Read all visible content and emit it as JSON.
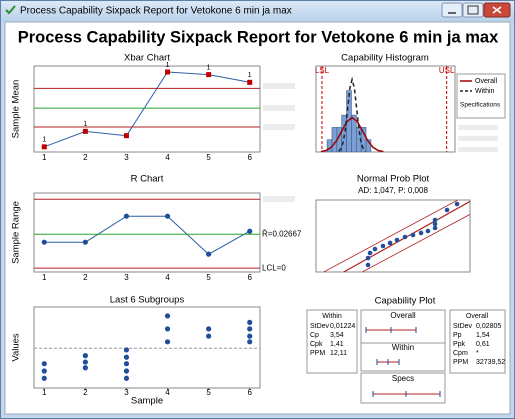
{
  "window": {
    "title": "Process Capability Sixpack Report for Vetokone 6 min ja max"
  },
  "title": "Process Capability Sixpack Report for Vetokone 6 min ja max",
  "chart_data": [
    {
      "type": "line",
      "title": "Xbar Chart",
      "y_label": "Sample Mean",
      "categories": [
        "1",
        "2",
        "3",
        "4",
        "5",
        "6"
      ],
      "values": [
        0.6,
        2.4,
        1.9,
        9.3,
        9.0,
        8.1
      ],
      "point_labels": [
        "1",
        "1",
        null,
        "1",
        "1",
        "1"
      ],
      "ucl": 7.4,
      "center": 5.1,
      "lcl": 2.9,
      "ylim": [
        0,
        10
      ],
      "color": "#2b5fa6",
      "marker": "square",
      "marker_color": "#c00000",
      "limit_color": "#b22222",
      "center_color": "#2ca02c"
    },
    {
      "type": "line",
      "title": "R Chart",
      "y_label": "Sample Range",
      "categories": [
        "1",
        "2",
        "3",
        "4",
        "5",
        "6"
      ],
      "values": [
        0.0204,
        0.0204,
        0.0408,
        0.0408,
        0.011,
        0.029
      ],
      "ucl": 0.0541,
      "center": 0.02667,
      "center_label": "R̄=0.02667",
      "lcl": 0,
      "lcl_label": "LCL=0",
      "ylim": [
        -0.003,
        0.059
      ],
      "color": "#2b5fa6",
      "marker": "circle",
      "marker_color": "#1f4e9a",
      "limit_color": "#b22222",
      "center_color": "#2ca02c"
    },
    {
      "type": "scatter",
      "title": "Last 6 Subgroups",
      "x_label": "Sample",
      "y_label": "Values",
      "x": [
        1,
        1,
        1,
        2,
        2,
        2,
        3,
        3,
        3,
        3,
        3,
        4,
        4,
        4,
        5,
        5,
        6,
        6,
        6,
        6
      ],
      "y": [
        3.0,
        2.1,
        1.2,
        4.0,
        3.2,
        2.5,
        4.7,
        3.8,
        3.0,
        2.1,
        1.2,
        8.9,
        7.3,
        5.7,
        7.3,
        6.4,
        8.1,
        7.3,
        6.4,
        5.7
      ],
      "mean_line": 4.9,
      "xlim": [
        0.75,
        6.25
      ],
      "xticks": [
        1,
        2,
        3,
        4,
        5,
        6
      ],
      "ylim": [
        0,
        10
      ],
      "color": "#1f4e9a"
    },
    {
      "type": "histogram",
      "title": "Capability Histogram",
      "bins": [
        0.8,
        1.15,
        1.5,
        1.85,
        2.2,
        2.55,
        2.9,
        3.25,
        3.6,
        3.95
      ],
      "counts": [
        1,
        2,
        2,
        3,
        5,
        3,
        2,
        2,
        1
      ],
      "xlim": [
        0,
        10
      ],
      "ylim": [
        0,
        7
      ],
      "color": "#7b9ed3",
      "lsl": 0.43,
      "usl": 9.4,
      "lsl_label": "LSL",
      "usl_label": "USL",
      "spec_color": "#c00000",
      "spec_legend": "Specifications",
      "series": [
        {
          "name": "Overall",
          "color": "#a00000",
          "dashed": false,
          "x": [
            0.35,
            0.725,
            1.1,
            1.475,
            1.85,
            2.225,
            2.6,
            2.975,
            3.35,
            3.725,
            4.1,
            4.475,
            4.85
          ],
          "values": [
            0.03,
            0.12,
            0.38,
            0.91,
            1.7,
            2.47,
            2.8,
            2.47,
            1.7,
            0.91,
            0.38,
            0.12,
            0.03
          ]
        },
        {
          "name": "Within",
          "color": "#222222",
          "dashed": true,
          "x": [
            1.64,
            1.8,
            1.96,
            2.12,
            2.28,
            2.44,
            2.6,
            2.76,
            2.92,
            3.08,
            3.24,
            3.4,
            3.56
          ],
          "values": [
            0.06,
            0.26,
            0.8,
            1.92,
            3.58,
            5.2,
            5.9,
            5.2,
            3.58,
            1.92,
            0.8,
            0.26,
            0.06
          ]
        }
      ]
    },
    {
      "type": "probability",
      "title": "Normal Prob Plot",
      "subtitle": "AD: 1,047, P: 0,008",
      "x": [
        3.38,
        3.38,
        3.51,
        3.83,
        4.35,
        4.81,
        5.26,
        5.78,
        6.3,
        6.82,
        7.27,
        7.73,
        7.73,
        7.73,
        8.51,
        9.16
      ],
      "y": [
        0.97,
        1.94,
        2.64,
        3.19,
        3.61,
        4.03,
        4.44,
        4.86,
        5.14,
        5.42,
        5.69,
        6.11,
        6.67,
        7.22,
        8.61,
        9.44
      ],
      "fit_line": {
        "x": [
          1.8,
          10
        ],
        "y": [
          0,
          9.8
        ]
      },
      "ci_upper": {
        "x": [
          0.5,
          9.2
        ],
        "y": [
          0,
          10
        ]
      },
      "ci_lower": {
        "x": [
          3,
          10
        ],
        "y": [
          0,
          8
        ]
      },
      "xlim": [
        0,
        10
      ],
      "ylim": [
        0,
        10
      ],
      "color": "#1f4e9a",
      "line_color": "#b22222"
    }
  ],
  "capability_plot": {
    "title": "Capability Plot",
    "within": {
      "title": "Within",
      "rows": [
        [
          "StDev",
          "0,01224"
        ],
        [
          "Cp",
          "3,54"
        ],
        [
          "Cpk",
          "1,41"
        ],
        [
          "PPM",
          "12,11"
        ]
      ]
    },
    "overall": {
      "title": "Overall",
      "rows": [
        [
          "StDev",
          "0,02805"
        ],
        [
          "Pp",
          "1,54"
        ],
        [
          "Ppk",
          "0,61"
        ],
        [
          "Cpm",
          "*"
        ],
        [
          "PPM",
          "32739,52"
        ]
      ]
    },
    "panels": [
      "Overall",
      "Within",
      "Specs"
    ]
  }
}
